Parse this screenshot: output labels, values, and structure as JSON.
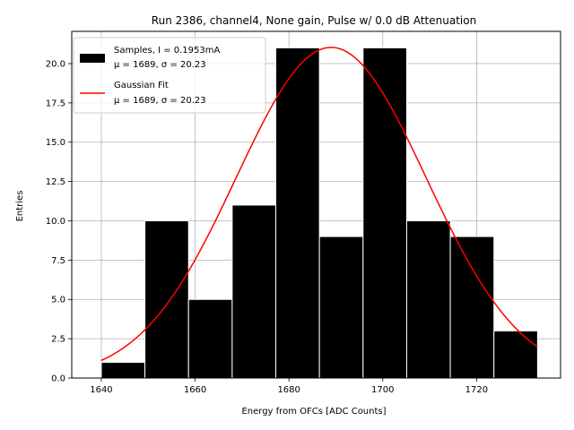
{
  "chart_data": {
    "type": "bar",
    "title": "Run 2386, channel4, None gain, Pulse w/ 0.0 dB Attenuation",
    "xlabel": "Energy from OFCs [ADC Counts]",
    "ylabel": "Entries",
    "xlim": [
      1633.7,
      1737.9
    ],
    "ylim": [
      0,
      22.05
    ],
    "x_ticks": [
      1640,
      1660,
      1680,
      1700,
      1720
    ],
    "y_ticks": [
      0.0,
      2.5,
      5.0,
      7.5,
      10.0,
      12.5,
      15.0,
      17.5,
      20.0
    ],
    "x_tick_labels": [
      "1640",
      "1660",
      "1680",
      "1700",
      "1720"
    ],
    "y_tick_labels": [
      "0.0",
      "2.5",
      "5.0",
      "7.5",
      "10.0",
      "12.5",
      "15.0",
      "17.5",
      "20.0"
    ],
    "grid": true,
    "legend_position": "top-left",
    "bins": [
      {
        "left": 1640.0,
        "right": 1649.3,
        "count": 1
      },
      {
        "left": 1649.3,
        "right": 1658.6,
        "count": 10
      },
      {
        "left": 1658.6,
        "right": 1667.9,
        "count": 5
      },
      {
        "left": 1667.9,
        "right": 1677.2,
        "count": 11
      },
      {
        "left": 1677.2,
        "right": 1686.5,
        "count": 21
      },
      {
        "left": 1686.5,
        "right": 1695.8,
        "count": 9
      },
      {
        "left": 1695.8,
        "right": 1705.1,
        "count": 21
      },
      {
        "left": 1705.1,
        "right": 1714.4,
        "count": 10
      },
      {
        "left": 1714.4,
        "right": 1723.7,
        "count": 9
      },
      {
        "left": 1723.7,
        "right": 1733.0,
        "count": 3
      }
    ],
    "series": [
      {
        "name": "Samples, I = 0.1953mA",
        "name_line2": "μ = 1689, σ = 20.23",
        "type": "histogram",
        "color": "#000000"
      },
      {
        "name": "Gaussian Fit",
        "name_line2": "μ = 1689, σ = 20.23",
        "type": "line",
        "color": "#ff0000",
        "amplitude": 21.03,
        "mu": 1689,
        "sigma": 20.23,
        "x_range": [
          1640,
          1733
        ]
      }
    ]
  }
}
